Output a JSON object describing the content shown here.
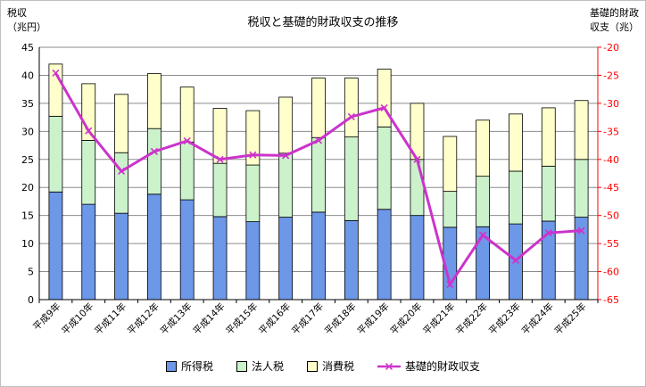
{
  "chart_data": {
    "type": "bar",
    "stacked": true,
    "title": "税収と基礎的財政収支の推移",
    "ylabel_left": [
      "税収",
      "（兆円）"
    ],
    "ylabel_right": [
      "基礎的財政",
      "収支（兆）"
    ],
    "categories": [
      "平成9年",
      "平成10年",
      "平成11年",
      "平成12年",
      "平成13年",
      "平成14年",
      "平成15年",
      "平成16年",
      "平成17年",
      "平成18年",
      "平成19年",
      "平成20年",
      "平成21年",
      "平成22年",
      "平成23年",
      "平成24年",
      "平成25年"
    ],
    "ylim_left": [
      0,
      45
    ],
    "yticks_left": [
      0,
      5,
      10,
      15,
      20,
      25,
      30,
      35,
      40,
      45
    ],
    "ylim_right": [
      -65,
      -20
    ],
    "yticks_right": [
      -65,
      -60,
      -55,
      -50,
      -45,
      -40,
      -35,
      -30,
      -25,
      -20
    ],
    "grid": true,
    "legend_position": "bottom",
    "series": [
      {
        "name": "所得税",
        "kind": "bar",
        "axis": "left",
        "color": "#6d97e7",
        "values": [
          19.2,
          17.0,
          15.4,
          18.8,
          17.8,
          14.8,
          13.9,
          14.7,
          15.6,
          14.1,
          16.1,
          15.0,
          12.9,
          13.0,
          13.5,
          14.0,
          14.7
        ]
      },
      {
        "name": "法人税",
        "kind": "bar",
        "axis": "left",
        "color": "#ccf2cc",
        "values": [
          13.5,
          11.4,
          10.8,
          11.7,
          10.3,
          9.5,
          10.1,
          11.4,
          13.3,
          14.9,
          14.7,
          10.0,
          6.4,
          9.0,
          9.4,
          9.8,
          10.3
        ]
      },
      {
        "name": "消費税",
        "kind": "bar",
        "axis": "left",
        "color": "#ffffcc",
        "values": [
          9.3,
          10.1,
          10.4,
          9.8,
          9.8,
          9.8,
          9.7,
          10.0,
          10.6,
          10.5,
          10.3,
          10.0,
          9.8,
          10.0,
          10.2,
          10.4,
          10.5
        ]
      },
      {
        "name": "基礎的財政収支",
        "kind": "line",
        "axis": "right",
        "color": "#cc33cc",
        "values": [
          -24.6,
          -34.9,
          -42.1,
          -38.6,
          -36.7,
          -40.0,
          -39.2,
          -39.3,
          -36.6,
          -32.4,
          -30.8,
          -40.0,
          -62.3,
          -53.5,
          -58.0,
          -53.1,
          -52.7
        ]
      }
    ]
  }
}
